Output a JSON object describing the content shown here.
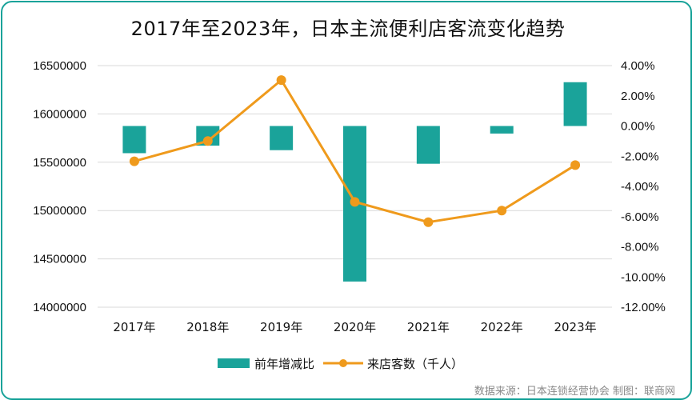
{
  "title": "2017年至2023年，日本主流便利店客流变化趋势",
  "source": "数据来源：日本连锁经营协会  制图：联商网",
  "colors": {
    "bar": "#1aa39a",
    "line": "#ef9a1c",
    "border": "#1aa39a",
    "grid": "#d9d9d9"
  },
  "chart_data": {
    "type": "bar+line",
    "categories": [
      "2017年",
      "2018年",
      "2019年",
      "2020年",
      "2021年",
      "2022年",
      "2023年"
    ],
    "left_axis": {
      "ylim": [
        14000000,
        16500000
      ],
      "ticks": [
        14000000,
        14500000,
        15000000,
        15500000,
        16000000,
        16500000
      ],
      "tick_labels": [
        "14000000",
        "14500000",
        "15000000",
        "15500000",
        "16000000",
        "16500000"
      ]
    },
    "right_axis": {
      "ylim": [
        -12.0,
        4.0
      ],
      "ticks": [
        -12,
        -10,
        -8,
        -6,
        -4,
        -2,
        0,
        2,
        4
      ],
      "tick_labels": [
        "-12.00%",
        "-10.00%",
        "-8.00%",
        "-6.00%",
        "-4.00%",
        "-2.00%",
        "0.00%",
        "2.00%",
        "4.00%"
      ]
    },
    "series": [
      {
        "name": "前年增减比",
        "type": "bar",
        "axis": "right",
        "unit": "%",
        "values": [
          -1.8,
          -1.3,
          -1.6,
          -10.3,
          -2.5,
          -0.5,
          2.9
        ]
      },
      {
        "name": "来店客数（千人）",
        "type": "line",
        "axis": "left",
        "values": [
          15510000,
          15720000,
          16350000,
          15090000,
          14880000,
          15000000,
          15470000
        ]
      }
    ],
    "legend_position": "bottom",
    "grid": true
  }
}
